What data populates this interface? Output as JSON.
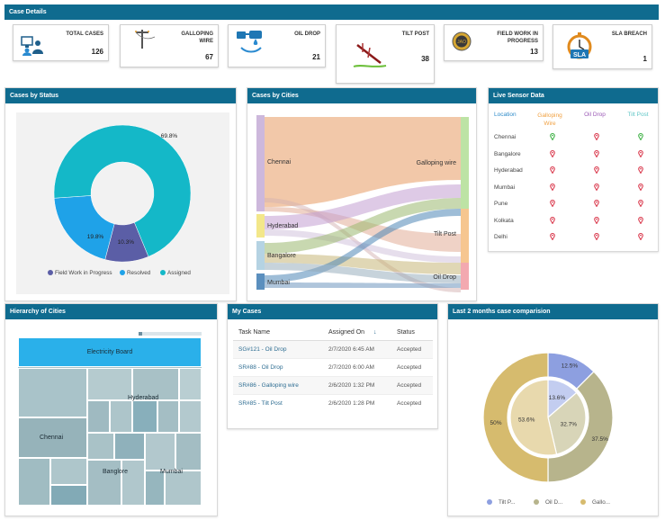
{
  "case_details": {
    "title": "Case Details",
    "cards": [
      {
        "label": "TOTAL CASES",
        "value": "126",
        "icon": "users-monitor-icon"
      },
      {
        "label": "GALLOPING WIRE",
        "value": "67",
        "icon": "power-pole-icon"
      },
      {
        "label": "OIL DROP",
        "value": "21",
        "icon": "oil-drop-icon"
      },
      {
        "label": "TILT POST",
        "value": "38",
        "icon": "tilt-post-icon"
      },
      {
        "label": "FIELD WORK IN PROGRESS",
        "value": "13",
        "icon": "field-work-badge-icon"
      },
      {
        "label": "SLA BREACH",
        "value": "1",
        "icon": "sla-stopwatch-icon"
      }
    ]
  },
  "cases_by_status": {
    "title": "Cases by Status",
    "chart_data": {
      "type": "pie",
      "categories": [
        "Field Work in Progress",
        "Resolved",
        "Assigned"
      ],
      "values": [
        10.3,
        19.8,
        69.8
      ],
      "data_labels": [
        "10.3%",
        "19.8%",
        "69.8%"
      ],
      "colors": [
        "#5b5ea6",
        "#1fa2e8",
        "#14b8c8"
      ],
      "legend": "bottom"
    }
  },
  "cases_by_cities": {
    "title": "Cases by Cities",
    "chart_data": {
      "type": "sankey",
      "sources": [
        "Chennai",
        "Hyderabad",
        "Bangalore",
        "Mumbai"
      ],
      "targets": [
        "Galloping wire",
        "Tilt Post",
        "Oil Drop"
      ],
      "source_colors": [
        "#cdb8dc",
        "#f3e78a",
        "#b5d3e3",
        "#5b8fbe"
      ],
      "target_colors": [
        "#bde3a5",
        "#f6c690",
        "#f3a9b0"
      ]
    }
  },
  "live_sensor": {
    "title": "Live Sensor Data",
    "headers": [
      "Location",
      "Galloping Wire",
      "Oil Drop",
      "Tilt Post"
    ],
    "header_colors": [
      "#2e8bc9",
      "#f0a040",
      "#9b59b6",
      "#5fc6c6"
    ],
    "rows": [
      {
        "location": "Chennai",
        "status": [
          "green",
          "red",
          "green"
        ]
      },
      {
        "location": "Bangalore",
        "status": [
          "red",
          "red",
          "red"
        ]
      },
      {
        "location": "Hyderabad",
        "status": [
          "red",
          "red",
          "red"
        ]
      },
      {
        "location": "Mumbai",
        "status": [
          "red",
          "red",
          "red"
        ]
      },
      {
        "location": "Pune",
        "status": [
          "red",
          "red",
          "red"
        ]
      },
      {
        "location": "Kolkata",
        "status": [
          "red",
          "red",
          "red"
        ]
      },
      {
        "location": "Delhi",
        "status": [
          "red",
          "red",
          "red"
        ]
      }
    ]
  },
  "hierarchy": {
    "title": "Hierarchy of Cities",
    "root": "Electricity Board",
    "cities": [
      "Chennai",
      "Hyderabad",
      "Banglore",
      "Mumbai"
    ]
  },
  "my_cases": {
    "title": "My Cases",
    "columns": [
      "Task Name",
      "Assigned On",
      "Status"
    ],
    "sort_icon": "sort-down-arrow-icon",
    "rows": [
      {
        "task": "SG#121 - Oil Drop",
        "date": "2/7/2020 6:45 AM",
        "status": "Accepted"
      },
      {
        "task": "SR#88 - Oil Drop",
        "date": "2/7/2020 6:00 AM",
        "status": "Accepted"
      },
      {
        "task": "SR#86 - Galloping wire",
        "date": "2/6/2020 1:32 PM",
        "status": "Accepted"
      },
      {
        "task": "SR#85 - Tilt Post",
        "date": "2/6/2020 1:28 PM",
        "status": "Accepted"
      }
    ]
  },
  "comparison": {
    "title": "Last 2 months case comparision",
    "chart_data": {
      "type": "pie",
      "categories": [
        "Tilt P...",
        "Oil D...",
        "Gallo..."
      ],
      "series": [
        {
          "values": [
            12.5,
            37.5,
            50
          ],
          "data_labels": [
            "12.5%",
            "37.5%",
            "50%"
          ]
        },
        {
          "values": [
            13.6,
            32.7,
            53.6
          ],
          "data_labels": [
            "13.6%",
            "32.7%",
            "53.6%"
          ]
        }
      ],
      "colors_outer": [
        "#8d9fe0",
        "#b7b48c",
        "#d6bb6e"
      ],
      "colors_inner": [
        "#c3cdf0",
        "#d8d5b8",
        "#e8d9ad"
      ],
      "legend": "bottom"
    }
  }
}
